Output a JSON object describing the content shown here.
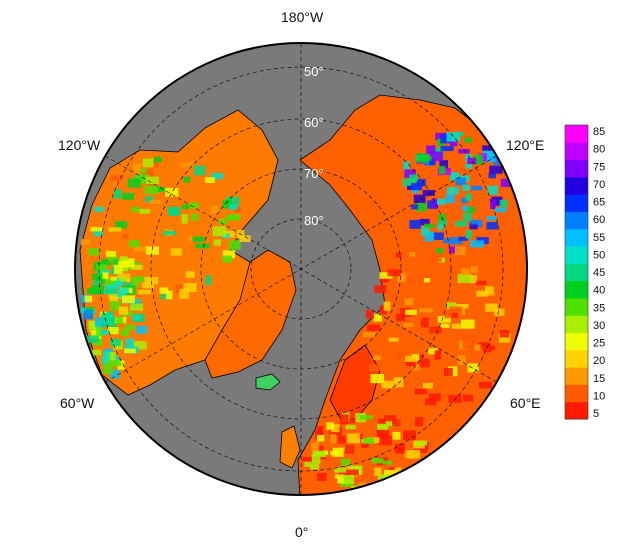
{
  "map": {
    "projection": "north polar stereographic",
    "ocean_color": "#7a7a7a",
    "border_color": "#000000",
    "longitude_labels": [
      "180°W",
      "120°W",
      "120°E",
      "60°W",
      "60°E",
      "0°"
    ],
    "latitude_labels": [
      "50°",
      "60°",
      "70°",
      "80°"
    ]
  },
  "colorbar": {
    "ticks": [
      "85",
      "80",
      "75",
      "70",
      "65",
      "60",
      "55",
      "50",
      "45",
      "40",
      "35",
      "30",
      "25",
      "20",
      "15",
      "10",
      "5"
    ],
    "colors_bottom_to_top": [
      "#ff1a00",
      "#ff5a00",
      "#ff9a00",
      "#ffd200",
      "#f0ff00",
      "#a8f000",
      "#50e000",
      "#00d020",
      "#00d880",
      "#00e0c8",
      "#00c0ff",
      "#0080ff",
      "#0030ff",
      "#2000e0",
      "#8000ff",
      "#c000ff",
      "#ff00ff"
    ]
  }
}
